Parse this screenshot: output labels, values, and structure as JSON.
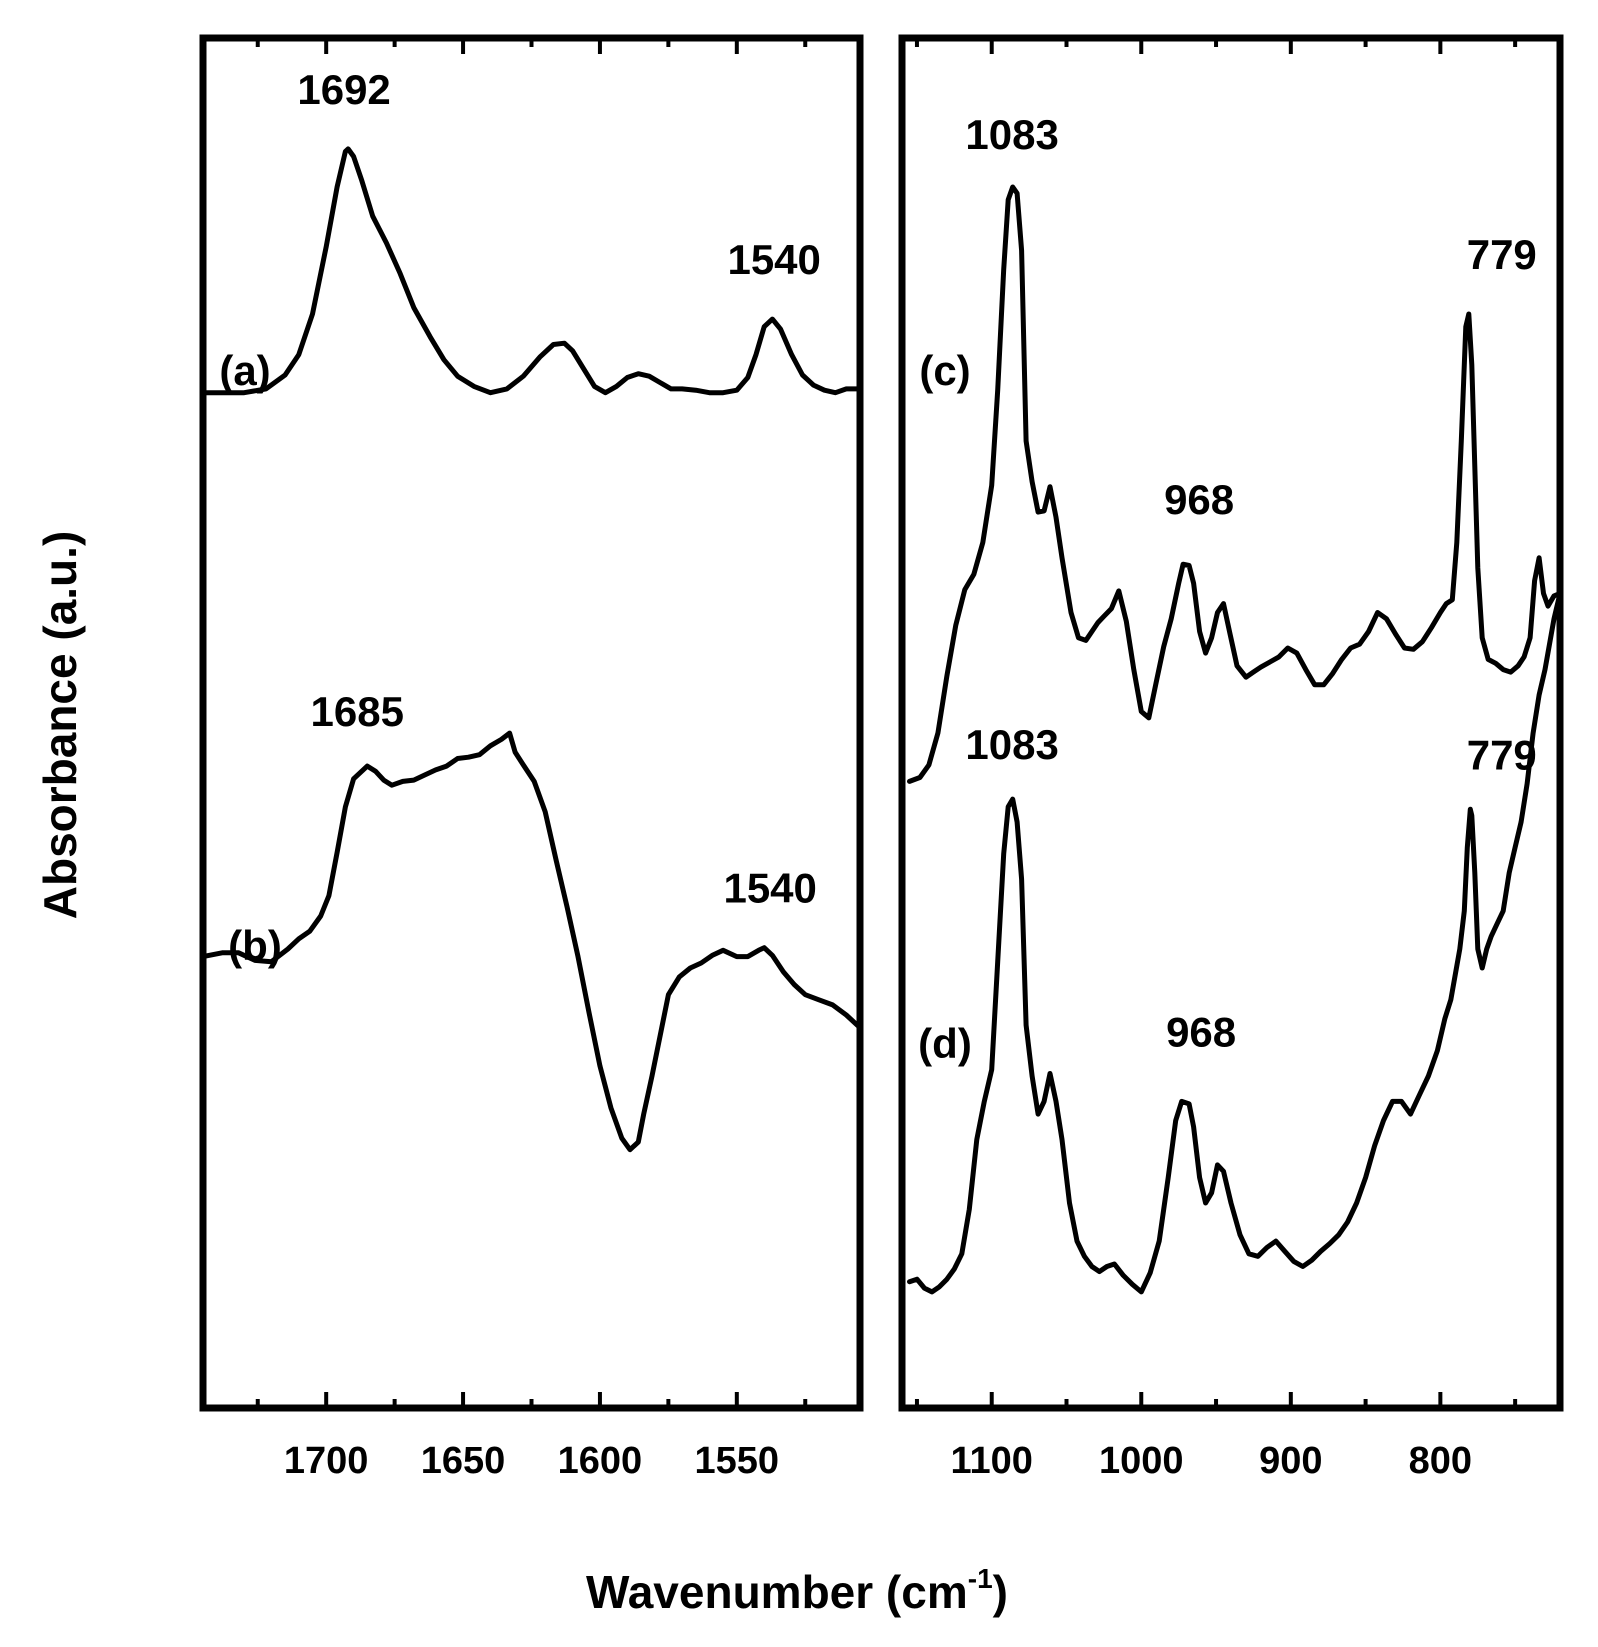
{
  "chart_data": {
    "type": "line",
    "ylabel": "Absorbance (a.u.)",
    "xlabel": "Wavenumber (cm",
    "xlabel_superscript": "-1",
    "xlabel_suffix": ")",
    "grid": false,
    "panels": [
      {
        "id": "left",
        "xlim": [
          1745,
          1505
        ],
        "x_reversed": true,
        "ylim": [
          0,
          1
        ],
        "xticks": [
          1700,
          1650,
          1600,
          1550
        ],
        "minor_xticks": [
          1725,
          1675,
          1625,
          1575,
          1525
        ],
        "series": [
          {
            "name": "(a)",
            "x": [
              1745,
              1730,
              1722,
              1715,
              1710,
              1705,
              1700,
              1696,
              1693,
              1692,
              1690,
              1687,
              1683,
              1678,
              1673,
              1668,
              1662,
              1657,
              1652,
              1646,
              1640,
              1634,
              1628,
              1622,
              1617,
              1613,
              1610,
              1606,
              1602,
              1598,
              1594,
              1590,
              1586,
              1582,
              1578,
              1574,
              1570,
              1565,
              1560,
              1555,
              1550,
              1546,
              1543,
              1540,
              1537,
              1534,
              1530,
              1526,
              1522,
              1518,
              1514,
              1510,
              1505
            ],
            "y": [
              0.738,
              0.738,
              0.741,
              0.752,
              0.768,
              0.8,
              0.853,
              0.9,
              0.928,
              0.93,
              0.924,
              0.905,
              0.877,
              0.856,
              0.832,
              0.805,
              0.782,
              0.764,
              0.751,
              0.743,
              0.738,
              0.741,
              0.751,
              0.766,
              0.776,
              0.777,
              0.771,
              0.757,
              0.743,
              0.738,
              0.743,
              0.75,
              0.753,
              0.751,
              0.746,
              0.741,
              0.741,
              0.74,
              0.738,
              0.738,
              0.74,
              0.75,
              0.768,
              0.79,
              0.796,
              0.788,
              0.768,
              0.752,
              0.744,
              0.74,
              0.738,
              0.741,
              0.741
            ]
          },
          {
            "name": "(b)",
            "x": [
              1745,
              1738,
              1732,
              1726,
              1720,
              1714,
              1710,
              1706,
              1702,
              1699,
              1696,
              1693,
              1690,
              1687,
              1685,
              1682,
              1679,
              1676,
              1672,
              1668,
              1664,
              1660,
              1656,
              1652,
              1648,
              1644,
              1640,
              1636,
              1633,
              1631,
              1628,
              1624,
              1620,
              1616,
              1612,
              1608,
              1604,
              1600,
              1596,
              1592,
              1589,
              1586,
              1584,
              1581,
              1578,
              1575,
              1571,
              1567,
              1563,
              1559,
              1555,
              1550,
              1546,
              1542,
              1540,
              1537,
              1533,
              1529,
              1525,
              1520,
              1515,
              1510,
              1505
            ],
            "y": [
              0.294,
              0.297,
              0.297,
              0.291,
              0.29,
              0.3,
              0.308,
              0.314,
              0.326,
              0.342,
              0.376,
              0.412,
              0.434,
              0.44,
              0.444,
              0.44,
              0.433,
              0.429,
              0.432,
              0.433,
              0.437,
              0.441,
              0.444,
              0.45,
              0.451,
              0.453,
              0.46,
              0.465,
              0.47,
              0.455,
              0.445,
              0.432,
              0.408,
              0.37,
              0.333,
              0.294,
              0.25,
              0.208,
              0.175,
              0.151,
              0.142,
              0.148,
              0.17,
              0.2,
              0.232,
              0.264,
              0.278,
              0.285,
              0.289,
              0.295,
              0.299,
              0.294,
              0.294,
              0.299,
              0.301,
              0.295,
              0.282,
              0.272,
              0.264,
              0.26,
              0.256,
              0.248,
              0.238
            ]
          }
        ],
        "annotations": [
          {
            "text": "1692",
            "x": 1692,
            "series": "(a)"
          },
          {
            "text": "1540",
            "x": 1540,
            "series": "(a)"
          },
          {
            "text": "1685",
            "x": 1685,
            "series": "(b)"
          },
          {
            "text": "1540",
            "x": 1540,
            "series": "(b)"
          }
        ]
      },
      {
        "id": "right",
        "xlim": [
          1160,
          720
        ],
        "x_reversed": true,
        "ylim": [
          0,
          1
        ],
        "xticks": [
          1100,
          1000,
          900,
          800
        ],
        "minor_xticks": [
          1150,
          1050,
          950,
          850,
          750
        ],
        "series": [
          {
            "name": "(c)",
            "x": [
              1155,
              1148,
              1142,
              1136,
              1130,
              1124,
              1118,
              1112,
              1106,
              1100,
              1096,
              1092,
              1089,
              1086,
              1083,
              1080,
              1077,
              1073,
              1069,
              1065,
              1061,
              1057,
              1053,
              1047,
              1042,
              1037,
              1033,
              1029,
              1025,
              1020,
              1015,
              1010,
              1005,
              1000,
              995,
              990,
              985,
              980,
              975,
              972,
              968,
              965,
              961,
              957,
              953,
              949,
              945,
              941,
              936,
              930,
              925,
              920,
              914,
              908,
              902,
              896,
              890,
              884,
              878,
              872,
              866,
              860,
              854,
              848,
              842,
              836,
              830,
              824,
              818,
              812,
              806,
              800,
              796,
              792,
              789,
              786,
              783,
              781,
              779,
              777,
              775,
              772,
              768,
              763,
              758,
              753,
              748,
              744,
              740,
              737,
              734,
              731,
              728,
              724,
              720
            ],
            "y": [
              0.432,
              0.435,
              0.445,
              0.47,
              0.515,
              0.555,
              0.583,
              0.595,
              0.62,
              0.665,
              0.74,
              0.835,
              0.89,
              0.9,
              0.895,
              0.85,
              0.7,
              0.668,
              0.644,
              0.645,
              0.664,
              0.64,
              0.608,
              0.565,
              0.545,
              0.543,
              0.55,
              0.557,
              0.562,
              0.568,
              0.582,
              0.558,
              0.52,
              0.487,
              0.482,
              0.51,
              0.538,
              0.56,
              0.588,
              0.603,
              0.602,
              0.588,
              0.55,
              0.533,
              0.545,
              0.565,
              0.572,
              0.55,
              0.523,
              0.514,
              0.518,
              0.522,
              0.526,
              0.53,
              0.537,
              0.533,
              0.52,
              0.508,
              0.508,
              0.517,
              0.528,
              0.537,
              0.54,
              0.55,
              0.565,
              0.56,
              0.548,
              0.537,
              0.536,
              0.542,
              0.553,
              0.565,
              0.572,
              0.575,
              0.62,
              0.7,
              0.79,
              0.8,
              0.76,
              0.68,
              0.6,
              0.545,
              0.528,
              0.525,
              0.52,
              0.518,
              0.523,
              0.53,
              0.545,
              0.59,
              0.608,
              0.58,
              0.57,
              0.578,
              0.58
            ]
          },
          {
            "name": "(d)",
            "x": [
              1155,
              1150,
              1145,
              1140,
              1135,
              1130,
              1125,
              1120,
              1115,
              1110,
              1105,
              1100,
              1096,
              1092,
              1089,
              1086,
              1083,
              1080,
              1077,
              1073,
              1069,
              1065,
              1061,
              1057,
              1053,
              1048,
              1043,
              1038,
              1033,
              1028,
              1023,
              1018,
              1012,
              1006,
              1000,
              994,
              988,
              982,
              977,
              973,
              968,
              965,
              961,
              957,
              953,
              949,
              945,
              940,
              934,
              928,
              922,
              916,
              910,
              904,
              898,
              892,
              886,
              880,
              874,
              868,
              862,
              856,
              850,
              844,
              838,
              832,
              826,
              820,
              814,
              808,
              802,
              797,
              793,
              790,
              787,
              784,
              782,
              780,
              779,
              777,
              775,
              772,
              769,
              766,
              762,
              758,
              754,
              750,
              746,
              742,
              738,
              734,
              730,
              727,
              724,
              720
            ],
            "y": [
              0.038,
              0.04,
              0.033,
              0.03,
              0.034,
              0.04,
              0.048,
              0.06,
              0.095,
              0.15,
              0.18,
              0.205,
              0.29,
              0.375,
              0.412,
              0.418,
              0.4,
              0.355,
              0.24,
              0.2,
              0.17,
              0.18,
              0.202,
              0.18,
              0.15,
              0.1,
              0.07,
              0.058,
              0.05,
              0.046,
              0.05,
              0.052,
              0.043,
              0.036,
              0.03,
              0.045,
              0.07,
              0.12,
              0.165,
              0.18,
              0.178,
              0.16,
              0.12,
              0.1,
              0.108,
              0.13,
              0.125,
              0.1,
              0.075,
              0.06,
              0.058,
              0.065,
              0.07,
              0.062,
              0.054,
              0.05,
              0.055,
              0.062,
              0.068,
              0.075,
              0.085,
              0.1,
              0.12,
              0.145,
              0.165,
              0.18,
              0.18,
              0.17,
              0.185,
              0.2,
              0.22,
              0.245,
              0.26,
              0.28,
              0.3,
              0.33,
              0.38,
              0.41,
              0.405,
              0.36,
              0.3,
              0.285,
              0.3,
              0.31,
              0.32,
              0.33,
              0.36,
              0.38,
              0.4,
              0.43,
              0.47,
              0.5,
              0.52,
              0.54,
              0.56,
              0.58
            ]
          }
        ],
        "annotations": [
          {
            "text": "1083",
            "x": 1083,
            "series": "(c)"
          },
          {
            "text": "968",
            "x": 968,
            "series": "(c)"
          },
          {
            "text": "779",
            "x": 779,
            "series": "(c)"
          },
          {
            "text": "1083",
            "x": 1083,
            "series": "(d)"
          },
          {
            "text": "968",
            "x": 968,
            "series": "(d)"
          },
          {
            "text": "779",
            "x": 779,
            "series": "(d)"
          }
        ]
      }
    ]
  }
}
